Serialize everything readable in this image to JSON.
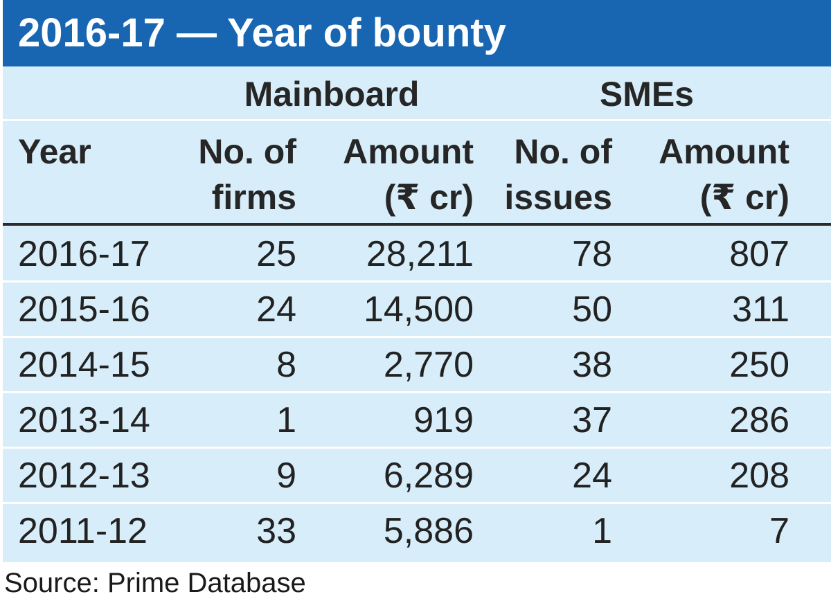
{
  "title": "2016-17 — Year of bounty",
  "header": {
    "groups": [
      "Mainboard",
      "SMEs"
    ],
    "columns": [
      [
        "Year",
        ""
      ],
      [
        "No. of",
        "firms"
      ],
      [
        "Amount",
        "(₹ cr)"
      ],
      [
        "No. of",
        "issues"
      ],
      [
        "Amount",
        "(₹ cr)"
      ]
    ]
  },
  "chart_data": {
    "type": "table",
    "title": "2016-17 — Year of bounty",
    "column_groups": [
      {
        "label": "Mainboard",
        "columns": [
          "No. of firms",
          "Amount (₹ cr)"
        ]
      },
      {
        "label": "SMEs",
        "columns": [
          "No. of issues",
          "Amount (₹ cr)"
        ]
      }
    ],
    "columns": [
      "Year",
      "No. of firms",
      "Amount (₹ cr)",
      "No. of issues",
      "Amount (₹ cr)"
    ],
    "rows": [
      [
        "2016-17",
        "25",
        "28,211",
        "78",
        "807"
      ],
      [
        "2015-16",
        "24",
        "14,500",
        "50",
        "311"
      ],
      [
        "2014-15",
        "8",
        "2,770",
        "38",
        "250"
      ],
      [
        "2013-14",
        "1",
        "919",
        "37",
        "286"
      ],
      [
        "2012-13",
        "9",
        "6,289",
        "24",
        "208"
      ],
      [
        "2011-12",
        "33",
        "5,886",
        "1",
        "7"
      ]
    ]
  },
  "source": "Source: Prime Database",
  "colors": {
    "title_bar": "#1866b2",
    "table_background": "#d7edf9",
    "title_text": "#ffffff"
  }
}
